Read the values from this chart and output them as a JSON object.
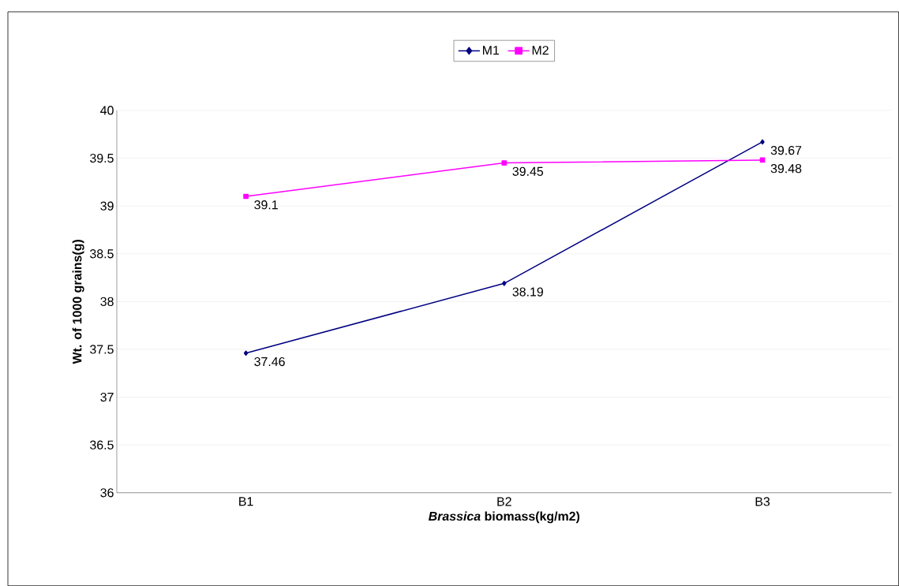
{
  "chart_data": {
    "type": "line",
    "xlabel": "*Brassica* biomass(kg/m2)",
    "ylabel": "Wt. of 1000 grains(g)",
    "categories": [
      "B1",
      "B2",
      "B3"
    ],
    "series": [
      {
        "name": "M1",
        "color": "#000080",
        "marker": "diamond",
        "values": [
          37.46,
          38.19,
          39.67
        ]
      },
      {
        "name": "M2",
        "color": "#ff00ff",
        "marker": "square",
        "values": [
          39.1,
          39.45,
          39.48
        ]
      }
    ],
    "ylim": [
      36,
      40
    ],
    "yticks": [
      36,
      36.5,
      37,
      37.5,
      38,
      38.5,
      39,
      39.5,
      40
    ],
    "grid": "y",
    "legend": "top",
    "data_labels": true,
    "line_style": "solid"
  }
}
